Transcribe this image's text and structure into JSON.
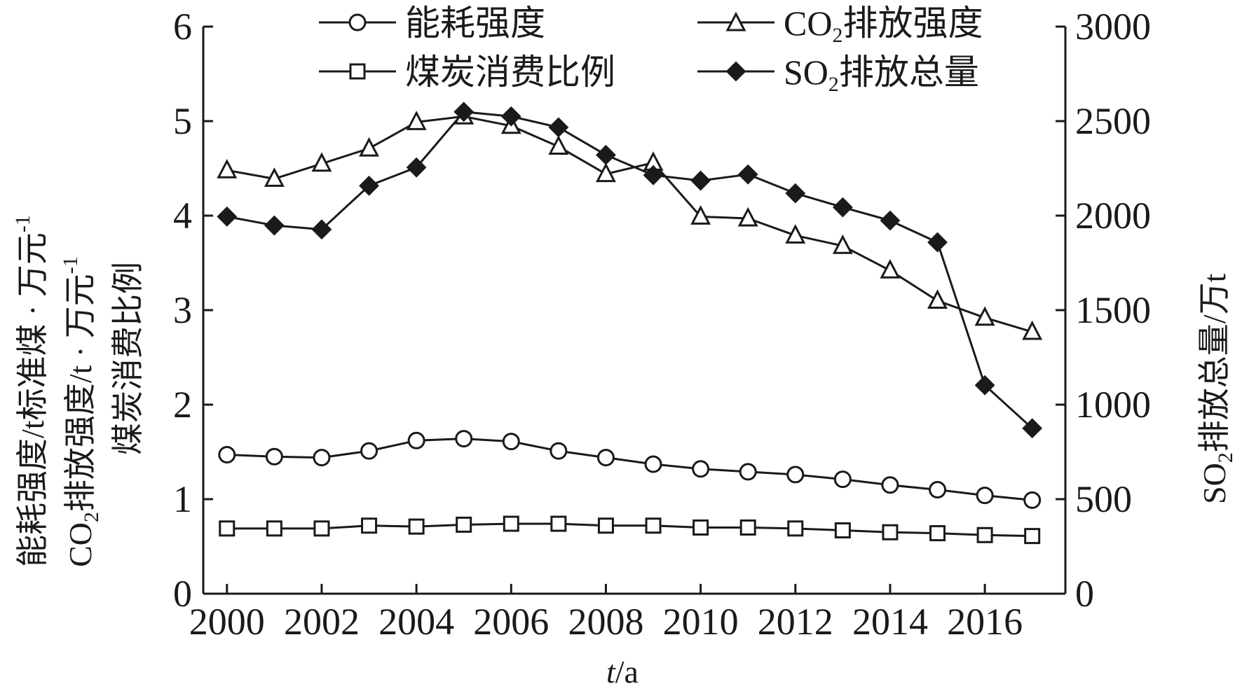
{
  "chart_data": {
    "type": "line",
    "x": [
      2000,
      2001,
      2002,
      2003,
      2004,
      2005,
      2006,
      2007,
      2008,
      2009,
      2010,
      2011,
      2012,
      2013,
      2014,
      2015,
      2016,
      2017
    ],
    "xticks": [
      "2000",
      "2002",
      "2004",
      "2006",
      "2008",
      "2010",
      "2012",
      "2014",
      "2016"
    ],
    "xlabel_italic": "t",
    "xlabel_rest": "/a",
    "ylabel_left_lines": [
      "能耗强度/t标准煤 · 万元⁻¹",
      "CO₂排放强度/t · 万元⁻¹",
      "煤炭消费比例"
    ],
    "ylabel_right": "SO₂排放总量/万t",
    "ylim_left": [
      0,
      6
    ],
    "ylim_right": [
      0,
      3000
    ],
    "yticks_left": [
      "0",
      "1",
      "2",
      "3",
      "4",
      "5",
      "6"
    ],
    "yticks_right": [
      "0",
      "500",
      "1000",
      "1500",
      "2000",
      "2500",
      "3000"
    ],
    "grid": false,
    "legend_position": "top",
    "series": [
      {
        "name": "能耗强度",
        "marker": "circle-open",
        "axis": "left",
        "values": [
          1.47,
          1.45,
          1.44,
          1.51,
          1.62,
          1.64,
          1.61,
          1.51,
          1.44,
          1.37,
          1.32,
          1.29,
          1.26,
          1.21,
          1.15,
          1.1,
          1.04,
          0.99
        ]
      },
      {
        "name": "CO₂排放强度",
        "marker": "triangle-open",
        "axis": "left",
        "values": [
          4.48,
          4.39,
          4.55,
          4.71,
          4.99,
          5.05,
          4.95,
          4.73,
          4.44,
          4.56,
          3.99,
          3.97,
          3.79,
          3.68,
          3.42,
          3.1,
          2.92,
          2.77
        ]
      },
      {
        "name": "煤炭消费比例",
        "marker": "square-open",
        "axis": "left",
        "values": [
          0.69,
          0.69,
          0.69,
          0.72,
          0.71,
          0.73,
          0.74,
          0.74,
          0.72,
          0.72,
          0.7,
          0.7,
          0.69,
          0.67,
          0.65,
          0.64,
          0.62,
          0.61
        ]
      },
      {
        "name": "SO₂排放总量",
        "marker": "diamond-filled",
        "axis": "right",
        "values": [
          1995,
          1948,
          1927,
          2158,
          2255,
          2549,
          2525,
          2467,
          2321,
          2214,
          2185,
          2218,
          2118,
          2044,
          1974,
          1859,
          1103,
          875
        ]
      }
    ],
    "colors": {
      "line": "#1a1a1a",
      "marker_fill": "#ffffff",
      "filled_marker": "#1a1a1a"
    }
  },
  "legend": {
    "energy_intensity": "能耗强度",
    "co2_main": "CO",
    "co2_sub": "2",
    "co2_rest": "排放强度",
    "coal_ratio": "煤炭消费比例",
    "so2_main": "SO",
    "so2_sub": "2",
    "so2_rest": "排放总量"
  },
  "axis_titles": {
    "left_line1": "能耗强度/t标准煤 · 万元",
    "left_line1_sup": "-1",
    "left_line2_main": "CO",
    "left_line2_sub": "2",
    "left_line2_rest": "排放强度/t · 万元",
    "left_line2_sup": "-1",
    "left_line3": "煤炭消费比例",
    "right_main": "SO",
    "right_sub": "2",
    "right_rest": "排放总量/万t",
    "x_italic": "t",
    "x_rest": "/a"
  }
}
